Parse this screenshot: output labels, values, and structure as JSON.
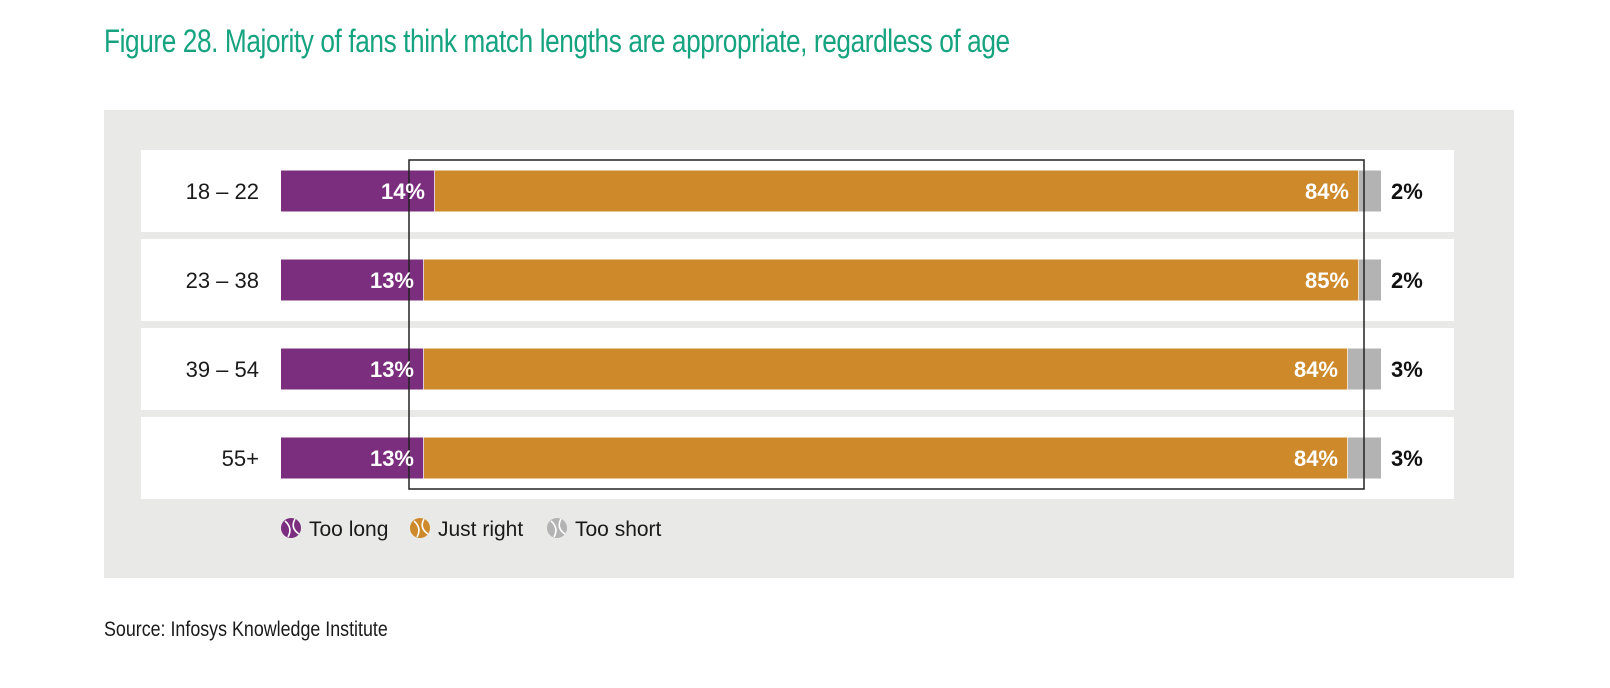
{
  "figure": {
    "title": "Figure 28. Majority of fans think match lengths are appropriate, regardless of age",
    "source": "Source: Infosys Knowledge Institute"
  },
  "colors": {
    "title": "#16a37f",
    "too_long": "#7b2d7e",
    "just_right": "#cd892a",
    "too_short": "#b3b3b3",
    "panel": "#e9e9e8",
    "row": "#ffffff"
  },
  "chart_data": {
    "type": "bar",
    "orientation": "horizontal",
    "stacked": true,
    "categories": [
      "18 – 22",
      "23 – 38",
      "39 – 54",
      "55+"
    ],
    "series": [
      {
        "name": "Too long",
        "values": [
          14,
          13,
          13,
          13
        ],
        "labels": [
          "14%",
          "13%",
          "13%",
          "13%"
        ]
      },
      {
        "name": "Just right",
        "values": [
          84,
          85,
          84,
          84
        ],
        "labels": [
          "84%",
          "85%",
          "84%",
          "84%"
        ]
      },
      {
        "name": "Too short",
        "values": [
          2,
          2,
          3,
          3
        ],
        "labels": [
          "2%",
          "2%",
          "3%",
          "3%"
        ]
      }
    ],
    "unit": "%",
    "xlim": [
      0,
      100
    ],
    "legend": "bottom",
    "grid": false
  }
}
